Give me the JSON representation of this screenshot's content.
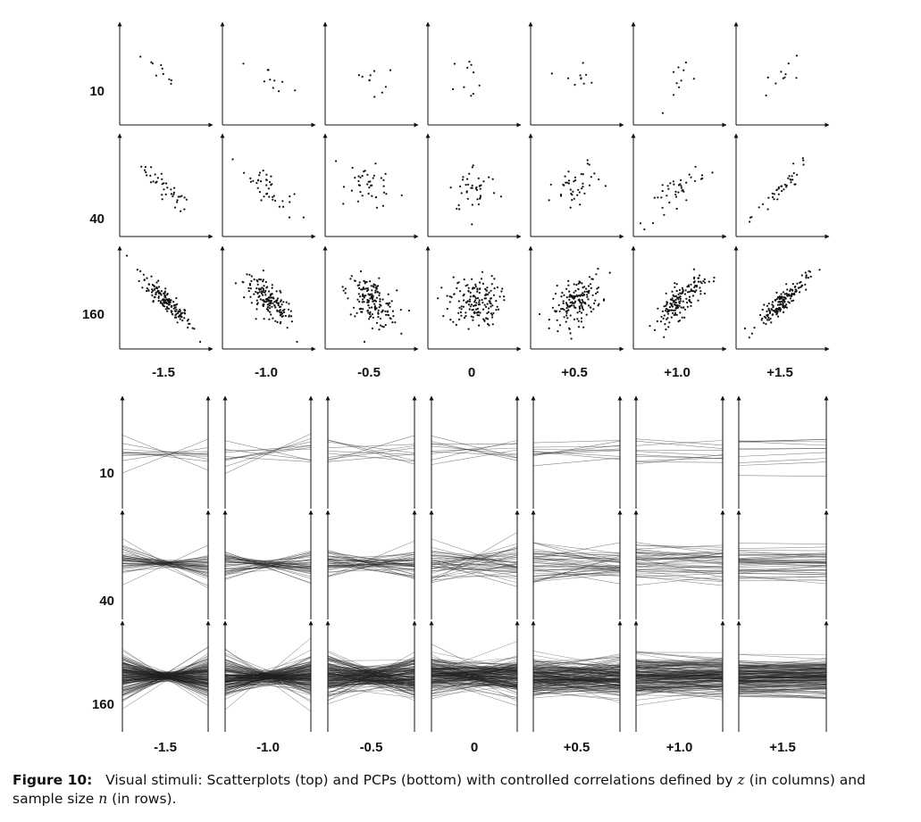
{
  "figure": {
    "caption": {
      "label": "Figure 10:",
      "text_a": "Visual stimuli: Scatterplots (top) and PCPs (bottom) with controlled correlations defined by ",
      "var_z": "z",
      "text_b": " (in columns) and sample size ",
      "var_n": "n",
      "text_c": " (in rows)."
    }
  },
  "chart_data": [
    {
      "type": "scatter",
      "panel": "Scatterplots (top)",
      "column_labels": [
        "-1.5",
        "-1.0",
        "-0.5",
        "0",
        "+0.5",
        "+1.0",
        "+1.5"
      ],
      "row_labels": [
        "10",
        "40",
        "160"
      ],
      "z_values": [
        -1.5,
        -1.0,
        -0.5,
        0,
        0.5,
        1.0,
        1.5
      ],
      "n_values": [
        10,
        40,
        160
      ]
    },
    {
      "type": "parallel_coordinates",
      "panel": "PCPs (bottom)",
      "column_labels": [
        "-1.5",
        "-1.0",
        "-0.5",
        "0",
        "+0.5",
        "+1.0",
        "+1.5"
      ],
      "row_labels": [
        "10",
        "40",
        "160"
      ],
      "z_values": [
        -1.5,
        -1.0,
        -0.5,
        0,
        0.5,
        1.0,
        1.5
      ],
      "n_values": [
        10,
        40,
        160
      ]
    }
  ]
}
